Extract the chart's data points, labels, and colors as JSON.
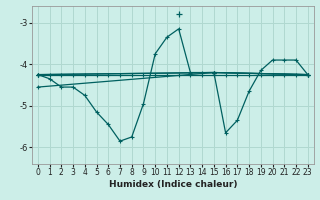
{
  "xlabel": "Humidex (Indice chaleur)",
  "background_color": "#cceee8",
  "grid_color": "#b0d8d0",
  "line_color": "#006060",
  "x_values": [
    0,
    1,
    2,
    3,
    4,
    5,
    6,
    7,
    8,
    9,
    10,
    11,
    12,
    13,
    14,
    15,
    16,
    17,
    18,
    19,
    20,
    21,
    22,
    23
  ],
  "series": [
    [
      -4.25,
      -4.35,
      -4.55,
      -4.55,
      -4.75,
      -5.15,
      -5.45,
      -5.85,
      -5.75,
      -4.95,
      -3.75,
      -3.35,
      -3.15,
      -4.2,
      -4.2,
      -4.2,
      -5.65,
      -5.35,
      -4.65,
      -4.15,
      -3.9,
      -3.9,
      -3.9,
      -4.25
    ],
    [
      -4.25,
      -4.25,
      -4.25,
      -4.25,
      -4.25,
      -4.25,
      -4.25,
      -4.25,
      -4.25,
      -4.25,
      -4.25,
      -4.25,
      -4.25,
      -4.25,
      -4.25,
      -4.25,
      -4.25,
      -4.25,
      -4.25,
      -4.25,
      -4.25,
      -4.25,
      -4.25,
      -4.25
    ],
    [
      -4.25,
      null,
      null,
      null,
      null,
      null,
      null,
      null,
      null,
      null,
      null,
      null,
      null,
      null,
      null,
      -4.2,
      null,
      null,
      null,
      null,
      null,
      null,
      null,
      -4.25
    ],
    [
      -4.25,
      null,
      null,
      null,
      null,
      null,
      null,
      null,
      null,
      null,
      null,
      null,
      null,
      null,
      null,
      -4.2,
      null,
      null,
      null,
      null,
      null,
      null,
      null,
      -4.25
    ],
    [
      -4.55,
      null,
      null,
      null,
      null,
      null,
      null,
      null,
      null,
      null,
      null,
      null,
      null,
      null,
      null,
      -4.2,
      null,
      null,
      null,
      null,
      null,
      null,
      null,
      -4.25
    ]
  ],
  "ylim": [
    -6.4,
    -2.6
  ],
  "xlim": [
    -0.5,
    23.5
  ],
  "yticks": [
    -6,
    -5,
    -4,
    -3
  ],
  "xticks": [
    0,
    1,
    2,
    3,
    4,
    5,
    6,
    7,
    8,
    9,
    10,
    11,
    12,
    13,
    14,
    15,
    16,
    17,
    18,
    19,
    20,
    21,
    22,
    23
  ],
  "markersize": 3.5,
  "linewidth": 0.9,
  "xlabel_fontsize": 6.5,
  "tick_fontsize": 5.5
}
